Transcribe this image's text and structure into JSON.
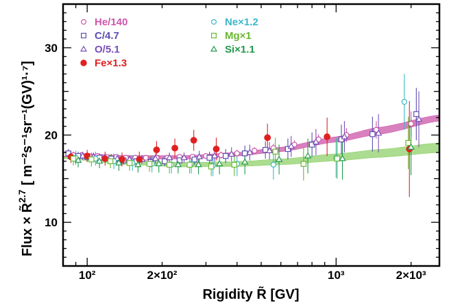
{
  "chart_data": {
    "type": "scatter",
    "title": "",
    "xlabel": "Rigidity R̃ [GV]",
    "ylabel_prefix": "Flux × R̃",
    "ylabel_power": "2.7",
    "ylabel_units": "[ m⁻²s⁻¹sr⁻¹(GV)¹·⁷]",
    "xscale": "log",
    "xlim": [
      80,
      2600
    ],
    "ylim": [
      5,
      35
    ],
    "grid": false,
    "legend_placement": "top-left",
    "x_ticks": [
      {
        "value": 100,
        "label": "10²"
      },
      {
        "value": 200,
        "label": "2×10²"
      },
      {
        "value": 1000,
        "label": "10³"
      },
      {
        "value": 2000,
        "label": "2×10³"
      }
    ],
    "y_ticks": [
      {
        "value": 10,
        "label": "10"
      },
      {
        "value": 20,
        "label": "20"
      },
      {
        "value": 30,
        "label": "30"
      }
    ],
    "series": [
      {
        "name": "He/140",
        "color": "#cc55aa",
        "marker": "circle-open",
        "points": [
          {
            "x": 82,
            "y": 17.8,
            "err": 0.3
          },
          {
            "x": 88,
            "y": 17.7,
            "err": 0.3
          },
          {
            "x": 95,
            "y": 17.7,
            "err": 0.3
          },
          {
            "x": 102,
            "y": 17.6,
            "err": 0.3
          },
          {
            "x": 110,
            "y": 17.6,
            "err": 0.3
          },
          {
            "x": 120,
            "y": 17.5,
            "err": 0.3
          },
          {
            "x": 131,
            "y": 17.5,
            "err": 0.3
          },
          {
            "x": 143,
            "y": 17.4,
            "err": 0.3
          },
          {
            "x": 156,
            "y": 17.4,
            "err": 0.3
          },
          {
            "x": 172,
            "y": 17.4,
            "err": 0.3
          },
          {
            "x": 190,
            "y": 17.4,
            "err": 0.3
          },
          {
            "x": 210,
            "y": 17.4,
            "err": 0.3
          },
          {
            "x": 235,
            "y": 17.5,
            "err": 0.3
          },
          {
            "x": 265,
            "y": 17.5,
            "err": 0.3
          },
          {
            "x": 300,
            "y": 17.6,
            "err": 0.3
          },
          {
            "x": 345,
            "y": 17.7,
            "err": 0.4
          },
          {
            "x": 400,
            "y": 17.9,
            "err": 0.4
          },
          {
            "x": 470,
            "y": 18.2,
            "err": 0.4
          },
          {
            "x": 560,
            "y": 18.5,
            "err": 0.5
          },
          {
            "x": 680,
            "y": 18.9,
            "err": 0.5
          },
          {
            "x": 850,
            "y": 19.5,
            "err": 0.6
          },
          {
            "x": 1100,
            "y": 20.0,
            "err": 0.8
          },
          {
            "x": 1450,
            "y": 20.6,
            "err": 1.0
          },
          {
            "x": 2000,
            "y": 21.3,
            "err": 1.4
          }
        ]
      },
      {
        "name": "C/4.7",
        "color": "#5a4fb0",
        "marker": "square-open",
        "points": [
          {
            "x": 84,
            "y": 17.9,
            "err": 0.5
          },
          {
            "x": 92,
            "y": 17.6,
            "err": 0.5
          },
          {
            "x": 100,
            "y": 17.5,
            "err": 0.5
          },
          {
            "x": 112,
            "y": 17.4,
            "err": 0.5
          },
          {
            "x": 125,
            "y": 17.3,
            "err": 0.5
          },
          {
            "x": 140,
            "y": 17.1,
            "err": 0.5
          },
          {
            "x": 158,
            "y": 17.0,
            "err": 0.5
          },
          {
            "x": 180,
            "y": 16.9,
            "err": 0.6
          },
          {
            "x": 205,
            "y": 17.0,
            "err": 0.6
          },
          {
            "x": 235,
            "y": 17.1,
            "err": 0.6
          },
          {
            "x": 270,
            "y": 17.2,
            "err": 0.6
          },
          {
            "x": 310,
            "y": 17.4,
            "err": 0.7
          },
          {
            "x": 360,
            "y": 17.6,
            "err": 0.8
          },
          {
            "x": 430,
            "y": 17.9,
            "err": 0.9
          },
          {
            "x": 520,
            "y": 18.3,
            "err": 1.0
          },
          {
            "x": 640,
            "y": 18.4,
            "err": 1.2
          },
          {
            "x": 800,
            "y": 18.9,
            "err": 1.4
          },
          {
            "x": 1050,
            "y": 19.5,
            "err": 1.7
          },
          {
            "x": 1400,
            "y": 20.1,
            "err": 2.0
          },
          {
            "x": 2100,
            "y": 22.4,
            "err": 3.0
          }
        ]
      },
      {
        "name": "O/5.1",
        "color": "#7a4fb8",
        "marker": "triangle-open",
        "points": [
          {
            "x": 86,
            "y": 17.6,
            "err": 0.5
          },
          {
            "x": 96,
            "y": 17.6,
            "err": 0.5
          },
          {
            "x": 106,
            "y": 17.5,
            "err": 0.5
          },
          {
            "x": 118,
            "y": 17.4,
            "err": 0.5
          },
          {
            "x": 132,
            "y": 17.3,
            "err": 0.5
          },
          {
            "x": 148,
            "y": 17.2,
            "err": 0.5
          },
          {
            "x": 166,
            "y": 17.2,
            "err": 0.5
          },
          {
            "x": 188,
            "y": 17.3,
            "err": 0.6
          },
          {
            "x": 214,
            "y": 17.4,
            "err": 0.6
          },
          {
            "x": 245,
            "y": 17.4,
            "err": 0.6
          },
          {
            "x": 282,
            "y": 17.5,
            "err": 0.7
          },
          {
            "x": 325,
            "y": 17.6,
            "err": 0.7
          },
          {
            "x": 380,
            "y": 17.8,
            "err": 0.8
          },
          {
            "x": 450,
            "y": 18.0,
            "err": 0.9
          },
          {
            "x": 540,
            "y": 18.2,
            "err": 1.0
          },
          {
            "x": 660,
            "y": 18.7,
            "err": 1.2
          },
          {
            "x": 830,
            "y": 19.2,
            "err": 1.5
          },
          {
            "x": 1080,
            "y": 19.8,
            "err": 1.8
          },
          {
            "x": 1480,
            "y": 20.2,
            "err": 2.2
          },
          {
            "x": 2150,
            "y": 21.8,
            "err": 3.2
          }
        ]
      },
      {
        "name": "Fe×1.3",
        "color": "#e02020",
        "marker": "circle-filled",
        "points": [
          {
            "x": 86,
            "y": 17.5,
            "err": 0.7
          },
          {
            "x": 100,
            "y": 17.6,
            "err": 0.7
          },
          {
            "x": 118,
            "y": 17.3,
            "err": 0.8
          },
          {
            "x": 138,
            "y": 17.2,
            "err": 0.8
          },
          {
            "x": 162,
            "y": 17.2,
            "err": 0.9
          },
          {
            "x": 190,
            "y": 18.3,
            "err": 1.0
          },
          {
            "x": 225,
            "y": 18.5,
            "err": 1.1
          },
          {
            "x": 268,
            "y": 19.4,
            "err": 1.2
          },
          {
            "x": 330,
            "y": 18.4,
            "err": 1.3
          },
          {
            "x": 530,
            "y": 19.7,
            "err": 1.6
          },
          {
            "x": 920,
            "y": 19.8,
            "err": 2.2
          },
          {
            "x": 1970,
            "y": 18.4,
            "err": 5.5
          }
        ]
      },
      {
        "name": "Ne×1.2",
        "color": "#3ab8c8",
        "marker": "circle-open",
        "points": [
          {
            "x": 90,
            "y": 17.4,
            "err": 0.8
          },
          {
            "x": 108,
            "y": 17.3,
            "err": 0.8
          },
          {
            "x": 128,
            "y": 17.0,
            "err": 0.9
          },
          {
            "x": 152,
            "y": 16.8,
            "err": 0.9
          },
          {
            "x": 182,
            "y": 16.7,
            "err": 1.0
          },
          {
            "x": 218,
            "y": 16.6,
            "err": 1.0
          },
          {
            "x": 262,
            "y": 16.7,
            "err": 1.1
          },
          {
            "x": 320,
            "y": 16.5,
            "err": 1.2
          },
          {
            "x": 400,
            "y": 16.7,
            "err": 1.4
          },
          {
            "x": 560,
            "y": 16.6,
            "err": 1.7
          },
          {
            "x": 1000,
            "y": 17.4,
            "err": 2.3
          },
          {
            "x": 1880,
            "y": 23.8,
            "err": 3.2
          }
        ]
      },
      {
        "name": "Mg×1",
        "color": "#6ab830",
        "marker": "square-open",
        "points": [
          {
            "x": 88,
            "y": 17.3,
            "err": 0.8
          },
          {
            "x": 104,
            "y": 17.2,
            "err": 0.8
          },
          {
            "x": 124,
            "y": 17.0,
            "err": 0.8
          },
          {
            "x": 148,
            "y": 16.8,
            "err": 0.9
          },
          {
            "x": 178,
            "y": 16.7,
            "err": 0.9
          },
          {
            "x": 214,
            "y": 16.6,
            "err": 1.0
          },
          {
            "x": 258,
            "y": 16.6,
            "err": 1.0
          },
          {
            "x": 315,
            "y": 16.4,
            "err": 1.1
          },
          {
            "x": 390,
            "y": 16.6,
            "err": 1.3
          },
          {
            "x": 570,
            "y": 18.1,
            "err": 1.6
          },
          {
            "x": 740,
            "y": 16.7,
            "err": 1.9
          },
          {
            "x": 1010,
            "y": 17.3,
            "err": 2.3
          },
          {
            "x": 1950,
            "y": 19.1,
            "err": 3.0
          }
        ]
      },
      {
        "name": "Si×1.1",
        "color": "#1f9a4a",
        "marker": "triangle-open",
        "points": [
          {
            "x": 92,
            "y": 17.1,
            "err": 0.8
          },
          {
            "x": 112,
            "y": 17.0,
            "err": 0.8
          },
          {
            "x": 134,
            "y": 16.8,
            "err": 0.9
          },
          {
            "x": 160,
            "y": 16.6,
            "err": 0.9
          },
          {
            "x": 194,
            "y": 16.7,
            "err": 1.0
          },
          {
            "x": 232,
            "y": 16.6,
            "err": 1.0
          },
          {
            "x": 280,
            "y": 16.6,
            "err": 1.1
          },
          {
            "x": 340,
            "y": 16.7,
            "err": 1.2
          },
          {
            "x": 430,
            "y": 16.9,
            "err": 1.4
          },
          {
            "x": 590,
            "y": 17.2,
            "err": 1.7
          },
          {
            "x": 770,
            "y": 17.6,
            "err": 2.0
          },
          {
            "x": 1060,
            "y": 17.3,
            "err": 2.4
          },
          {
            "x": 2000,
            "y": 18.6,
            "err": 3.2
          }
        ]
      }
    ],
    "bands": [
      {
        "color": "#cc55aa",
        "x": [
          80,
          150,
          250,
          400,
          600,
          1000,
          1500,
          2600
        ],
        "y_low": [
          17.55,
          17.25,
          17.25,
          17.6,
          18.1,
          19.2,
          20.1,
          21.6
        ],
        "y_high": [
          17.95,
          17.65,
          17.65,
          18.0,
          18.6,
          19.8,
          20.9,
          22.3
        ]
      },
      {
        "color": "#8fd06a",
        "x": [
          80,
          150,
          250,
          400,
          600,
          1000,
          1500,
          2600
        ],
        "y_low": [
          17.3,
          16.6,
          16.35,
          16.4,
          16.6,
          17.05,
          17.45,
          18.0
        ],
        "y_high": [
          17.8,
          17.05,
          16.85,
          16.95,
          17.25,
          17.85,
          18.35,
          19.1
        ]
      }
    ],
    "legend_columns": [
      [
        "He/140",
        "C/4.7",
        "O/5.1",
        "Fe×1.3"
      ],
      [
        "Ne×1.2",
        "Mg×1",
        "Si×1.1"
      ]
    ]
  }
}
